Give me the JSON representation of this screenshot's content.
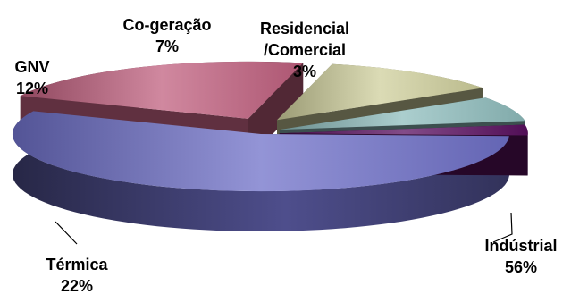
{
  "chart_data": {
    "type": "pie",
    "style": "3d-exploded",
    "title": "",
    "legend": "none",
    "slices": [
      {
        "label_lines": [
          "Indústrial",
          "56%"
        ],
        "value": 56,
        "color": "#6f70c8"
      },
      {
        "label_lines": [
          "Térmica",
          "22%"
        ],
        "value": 22,
        "color": "#c0607f"
      },
      {
        "label_lines": [
          "GNV",
          "12%"
        ],
        "value": 12,
        "color": "#cfcf9c"
      },
      {
        "label_lines": [
          "Co-geração",
          "7%"
        ],
        "value": 7,
        "color": "#8fbdbd"
      },
      {
        "label_lines": [
          "Residencial",
          "/Comercial",
          "3%"
        ],
        "value": 3,
        "color": "#5a1060"
      }
    ]
  }
}
